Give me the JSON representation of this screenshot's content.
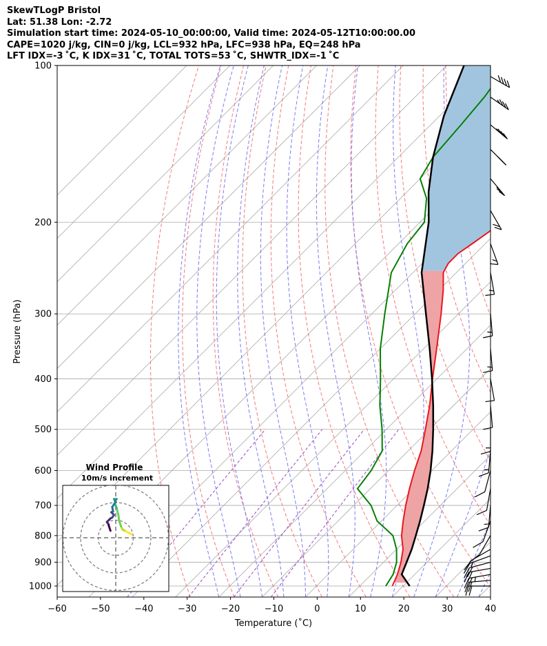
{
  "header": {
    "line1": "SkewTLogP Bristol",
    "line2": "Lat: 51.38   Lon: -2.72",
    "line3": "Simulation start time: 2024-05-10_00:00:00, Valid time: 2024-05-12T10:00:00.00",
    "line4": "CAPE=1020 j/kg, CIN=0 j/kg, LCL=932 hPa, LFC=938 hPa, EQ=248 hPa",
    "line5": "LFT IDX=-3 ˚C, K IDX=31 ˚C, TOTAL TOTS=53 ˚C, SHWTR_IDX=-1 ˚C"
  },
  "colors": {
    "temperature": "#e8171d",
    "dewpoint": "#008000",
    "parcel": "#000000",
    "cape_fill": "#a2c5df",
    "cin_fill": "#eea3a5",
    "dry_adiabat": "#f26b6b",
    "moist_adiabat": "#6b6bf2",
    "mixing_ratio": "#9b44c4",
    "isotherm": "#a9a9a9"
  },
  "chart_data": {
    "type": "line",
    "title": "",
    "xlabel": "Temperature (˚C)",
    "ylabel": "Pressure (hPa)",
    "xlim": [
      -60,
      40
    ],
    "ylim": [
      1050,
      100
    ],
    "log_y": true,
    "skew": true,
    "grid": true,
    "x_ticks": [
      "−60",
      "−50",
      "−40",
      "−30",
      "−20",
      "−10",
      "0",
      "10",
      "20",
      "30",
      "40"
    ],
    "y_ticks": [
      "100",
      "200",
      "300",
      "400",
      "500",
      "600",
      "700",
      "800",
      "900",
      "1000"
    ],
    "series": [
      {
        "name": "Temperature",
        "points": [
          [
            1000,
            17.5
          ],
          [
            950,
            16
          ],
          [
            900,
            14
          ],
          [
            850,
            11.5
          ],
          [
            800,
            8
          ],
          [
            750,
            5
          ],
          [
            700,
            2
          ],
          [
            650,
            -1
          ],
          [
            600,
            -4
          ],
          [
            550,
            -7
          ],
          [
            500,
            -11
          ],
          [
            450,
            -15.5
          ],
          [
            400,
            -21
          ],
          [
            350,
            -27
          ],
          [
            300,
            -34
          ],
          [
            270,
            -39
          ],
          [
            250,
            -43
          ],
          [
            240,
            -44
          ],
          [
            230,
            -44
          ],
          [
            220,
            -43
          ],
          [
            210,
            -42
          ],
          [
            200,
            -41
          ],
          [
            180,
            -40
          ],
          [
            160,
            -40
          ],
          [
            150,
            -41
          ],
          [
            140,
            -42
          ],
          [
            130,
            -43
          ],
          [
            120,
            -44
          ],
          [
            110,
            -48
          ],
          [
            100,
            -53
          ]
        ]
      },
      {
        "name": "Dewpoint",
        "points": [
          [
            1000,
            16
          ],
          [
            950,
            15
          ],
          [
            900,
            13
          ],
          [
            850,
            10
          ],
          [
            800,
            6
          ],
          [
            750,
            -1
          ],
          [
            700,
            -6
          ],
          [
            650,
            -13
          ],
          [
            600,
            -14
          ],
          [
            550,
            -16
          ],
          [
            500,
            -21
          ],
          [
            450,
            -27
          ],
          [
            400,
            -33
          ],
          [
            350,
            -40
          ],
          [
            300,
            -47
          ],
          [
            250,
            -55
          ],
          [
            220,
            -58
          ],
          [
            200,
            -59
          ],
          [
            180,
            -64
          ],
          [
            165,
            -70
          ],
          [
            150,
            -72
          ],
          [
            130,
            -73
          ],
          [
            115,
            -74
          ],
          [
            100,
            -76
          ]
        ]
      },
      {
        "name": "Parcel",
        "points": [
          [
            1000,
            21.5
          ],
          [
            950,
            17
          ],
          [
            900,
            15.3
          ],
          [
            850,
            13.5
          ],
          [
            800,
            11.3
          ],
          [
            750,
            8.9
          ],
          [
            700,
            6.2
          ],
          [
            650,
            3.2
          ],
          [
            600,
            -0.3
          ],
          [
            550,
            -4.4
          ],
          [
            500,
            -9.2
          ],
          [
            450,
            -14.7
          ],
          [
            400,
            -21.1
          ],
          [
            350,
            -28.6
          ],
          [
            300,
            -37.5
          ],
          [
            250,
            -48
          ],
          [
            200,
            -58
          ],
          [
            175,
            -65
          ],
          [
            150,
            -72
          ],
          [
            125,
            -79
          ],
          [
            100,
            -86
          ]
        ]
      }
    ],
    "inset": {
      "title": "Wind Profile",
      "subtitle": "10m/s increment",
      "hodograph": [
        [
          9,
          2
        ],
        [
          7.5,
          2.8
        ],
        [
          6,
          3.5
        ],
        [
          5,
          4.2
        ],
        [
          4,
          4.5
        ],
        [
          3,
          6.5
        ],
        [
          2,
          9.5
        ],
        [
          1.5,
          13
        ],
        [
          0.5,
          17
        ],
        [
          -0.5,
          19.5
        ],
        [
          0,
          21.5
        ],
        [
          -1,
          22
        ],
        [
          0.5,
          22
        ],
        [
          -0.5,
          21
        ],
        [
          0,
          20.5
        ],
        [
          -2,
          17.5
        ],
        [
          -1.5,
          15
        ],
        [
          -2.5,
          14.5
        ],
        [
          -1,
          13
        ],
        [
          -2,
          11.5
        ],
        [
          -3,
          11
        ],
        [
          -5,
          9
        ],
        [
          -4,
          7.5
        ],
        [
          -4,
          7
        ],
        [
          -3,
          4
        ]
      ]
    },
    "wind_barbs": [
      {
        "p": 1000,
        "speed_kt": 20,
        "dir": 270
      },
      {
        "p": 975,
        "speed_kt": 20,
        "dir": 275
      },
      {
        "p": 950,
        "speed_kt": 25,
        "dir": 280
      },
      {
        "p": 925,
        "speed_kt": 20,
        "dir": 280
      },
      {
        "p": 900,
        "speed_kt": 20,
        "dir": 285
      },
      {
        "p": 875,
        "speed_kt": 15,
        "dir": 290
      },
      {
        "p": 850,
        "speed_kt": 10,
        "dir": 300
      },
      {
        "p": 800,
        "speed_kt": 10,
        "dir": 330
      },
      {
        "p": 750,
        "speed_kt": 10,
        "dir": 340
      },
      {
        "p": 700,
        "speed_kt": 15,
        "dir": 355
      },
      {
        "p": 650,
        "speed_kt": 10,
        "dir": 350
      },
      {
        "p": 600,
        "speed_kt": 10,
        "dir": 345
      },
      {
        "p": 550,
        "speed_kt": 15,
        "dir": 355
      },
      {
        "p": 500,
        "speed_kt": 15,
        "dir": 360
      },
      {
        "p": 450,
        "speed_kt": 10,
        "dir": 5
      },
      {
        "p": 400,
        "speed_kt": 10,
        "dir": 10
      },
      {
        "p": 350,
        "speed_kt": 15,
        "dir": 5
      },
      {
        "p": 300,
        "speed_kt": 15,
        "dir": 5
      },
      {
        "p": 250,
        "speed_kt": 15,
        "dir": 10
      },
      {
        "p": 220,
        "speed_kt": 15,
        "dir": 20
      },
      {
        "p": 190,
        "speed_kt": 20,
        "dir": 30
      },
      {
        "p": 165,
        "speed_kt": 25,
        "dir": 40
      },
      {
        "p": 145,
        "speed_kt": 25,
        "dir": 45
      },
      {
        "p": 130,
        "speed_kt": 35,
        "dir": 50
      },
      {
        "p": 115,
        "speed_kt": 35,
        "dir": 55
      },
      {
        "p": 105,
        "speed_kt": 40,
        "dir": 60
      }
    ]
  }
}
